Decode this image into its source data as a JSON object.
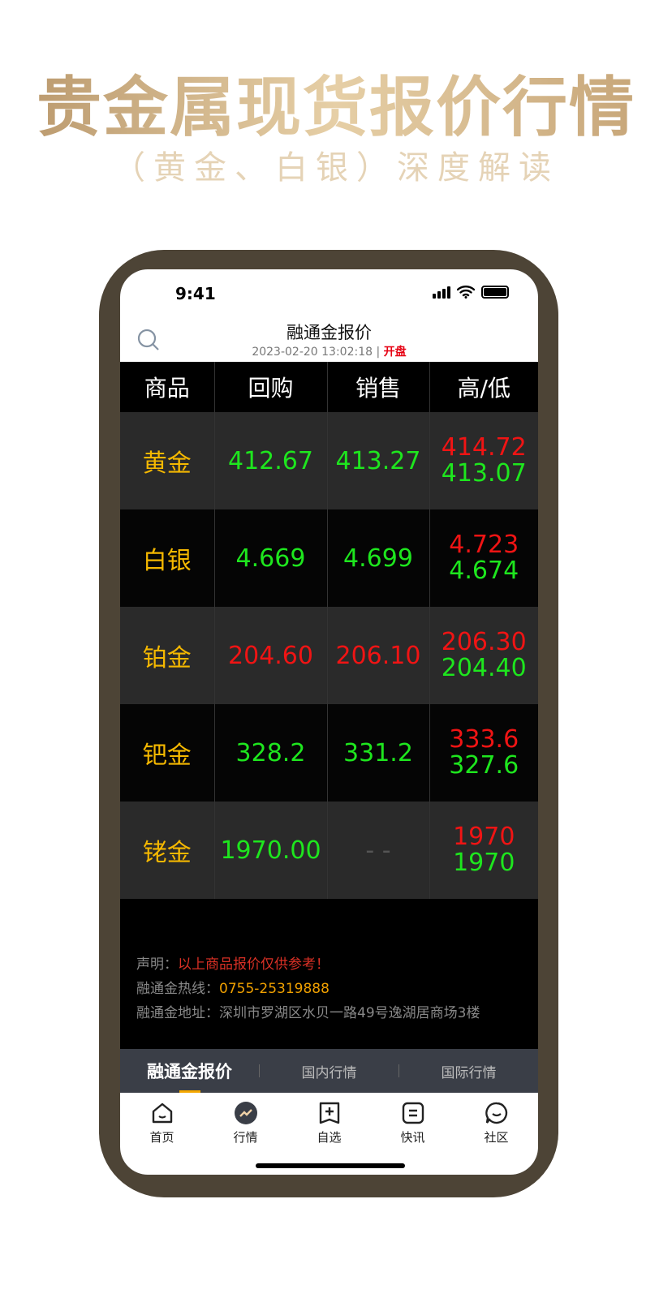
{
  "promo": {
    "title": "贵金属现货报价行情",
    "subtitle": "（黄金、白银）深度解读"
  },
  "status_bar": {
    "time": "9:41"
  },
  "header": {
    "title": "融通金报价",
    "date": "2023-02-20  13:02:18",
    "separator": "|",
    "market_status": "开盘"
  },
  "table": {
    "columns": [
      "商品",
      "回购",
      "销售",
      "高/低"
    ],
    "rows": [
      {
        "name": "黄金",
        "buyback": "412.67",
        "sell": "413.27",
        "high": "414.72",
        "low": "413.07",
        "buyback_color": "green",
        "sell_color": "green"
      },
      {
        "name": "白银",
        "buyback": "4.669",
        "sell": "4.699",
        "high": "4.723",
        "low": "4.674",
        "buyback_color": "green",
        "sell_color": "green"
      },
      {
        "name": "铂金",
        "buyback": "204.60",
        "sell": "206.10",
        "high": "206.30",
        "low": "204.40",
        "buyback_color": "red",
        "sell_color": "red"
      },
      {
        "name": "钯金",
        "buyback": "328.2",
        "sell": "331.2",
        "high": "333.6",
        "low": "327.6",
        "buyback_color": "green",
        "sell_color": "green"
      },
      {
        "name": "铑金",
        "buyback": "1970.00",
        "sell": "- -",
        "high": "1970",
        "low": "1970",
        "buyback_color": "green",
        "sell_color": "dash"
      }
    ]
  },
  "info": {
    "disclaimer_label": "声明：",
    "disclaimer": "以上商品报价仅供参考！",
    "hotline_label": "融通金热线：",
    "hotline": "0755-25319888",
    "address_label": "融通金地址：",
    "address": "深圳市罗湖区水贝一路49号逸湖居商场3楼"
  },
  "tabs": [
    {
      "label": "融通金报价",
      "active": true
    },
    {
      "label": "国内行情"
    },
    {
      "label": "国际行情"
    }
  ],
  "nav": [
    {
      "label": "首页",
      "icon": "home-icon"
    },
    {
      "label": "行情",
      "icon": "market-icon"
    },
    {
      "label": "自选",
      "icon": "watchlist-add-icon"
    },
    {
      "label": "快讯",
      "icon": "news-icon"
    },
    {
      "label": "社区",
      "icon": "chat-icon"
    }
  ],
  "colors": {
    "gold_title": "#c9a877",
    "bezel": "#4d4436",
    "green": "#1ee61e",
    "red": "#f01414",
    "name": "#f5b800",
    "tab_accent": "#f5a800"
  }
}
